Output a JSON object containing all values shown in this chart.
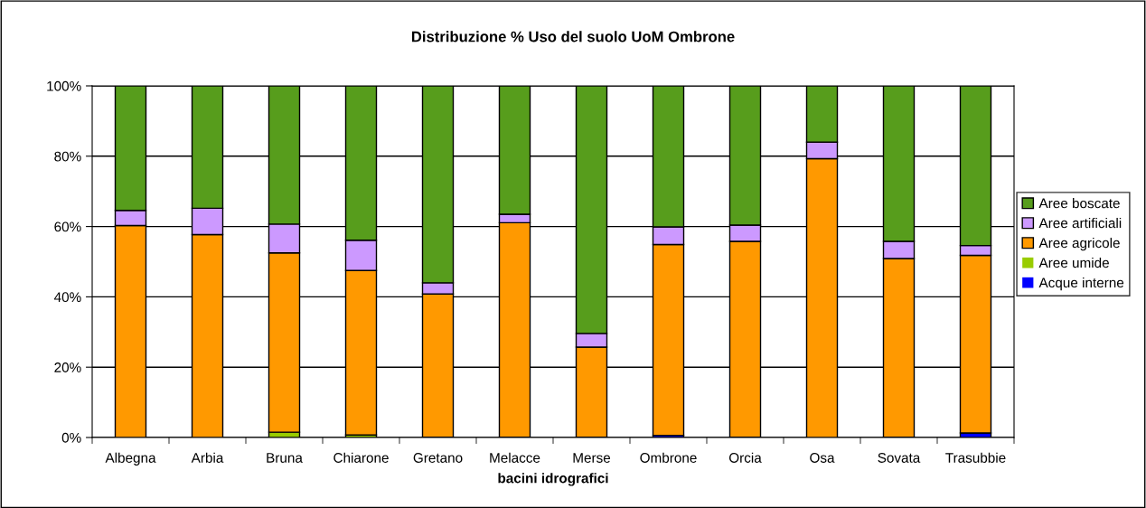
{
  "chart_data": {
    "type": "bar",
    "title": "Distribuzione % Uso del suolo UoM Ombrone",
    "xlabel": "bacini idrografici",
    "stacked": true,
    "categories": [
      "Albegna",
      "Arbia",
      "Bruna",
      "Chiarone",
      "Gretano",
      "Melacce",
      "Merse",
      "Ombrone",
      "Orcia",
      "Osa",
      "Sovata",
      "Trasubbie"
    ],
    "series": [
      {
        "name": "Acque interne",
        "color": "#0000ff",
        "values": [
          null,
          null,
          null,
          null,
          0.1,
          0.1,
          0.1,
          0.6,
          0.1,
          null,
          0.1,
          1.3
        ]
      },
      {
        "name": "Aree umide",
        "color": "#99cc00",
        "values": [
          0,
          0,
          1.5,
          0.7,
          0,
          0,
          0,
          0,
          0,
          0,
          0,
          0
        ]
      },
      {
        "name": "Aree agricole",
        "color": "#ff9900",
        "values": [
          60.3,
          57.7,
          51.0,
          46.8,
          40.7,
          61.0,
          25.6,
          54.3,
          55.7,
          79.3,
          50.8,
          50.5
        ]
      },
      {
        "name": "Aree artificiali",
        "color": "#cc99ff",
        "values": [
          4.3,
          7.5,
          8.2,
          8.6,
          3.2,
          2.4,
          3.9,
          5.0,
          4.6,
          4.7,
          4.9,
          2.8
        ]
      },
      {
        "name": "Aree boscate",
        "color": "#579d1c",
        "values": [
          35.4,
          34.8,
          39.3,
          43.9,
          56.0,
          36.5,
          70.4,
          40.1,
          39.6,
          16.0,
          44.2,
          45.4
        ]
      }
    ],
    "ylim": [
      0,
      100
    ],
    "yticks": [
      {
        "value": 0,
        "label": "0%"
      },
      {
        "value": 20,
        "label": "20%"
      },
      {
        "value": 40,
        "label": "40%"
      },
      {
        "value": 60,
        "label": "60%"
      },
      {
        "value": 80,
        "label": "80%"
      },
      {
        "value": 100,
        "label": "100%"
      }
    ],
    "grid": "y",
    "legend": "right"
  }
}
